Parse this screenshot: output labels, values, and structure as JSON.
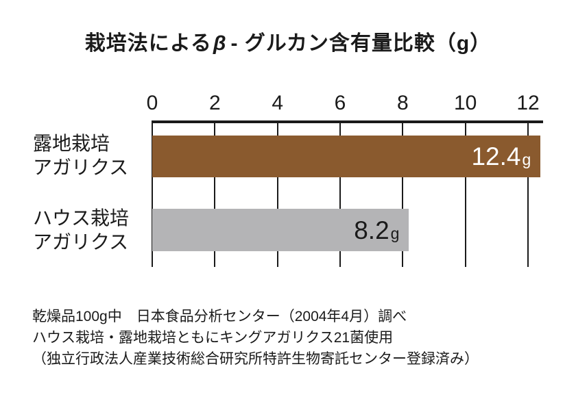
{
  "title": {
    "prefix": "栽培法による",
    "beta": "β",
    "suffix": "- グルカン含有量比較（g）"
  },
  "chart_data": {
    "type": "bar",
    "orientation": "horizontal",
    "title": "栽培法によるβ-グルカン含有量比較（g）",
    "unit": "g",
    "xlim": [
      0,
      12
    ],
    "x_ticks": [
      0,
      2,
      4,
      6,
      8,
      10,
      12
    ],
    "grid": true,
    "categories": [
      "露地栽培アガリクス",
      "ハウス栽培アガリクス"
    ],
    "category_lines": [
      [
        "露地栽培",
        "アガリクス"
      ],
      [
        "ハウス栽培",
        "アガリクス"
      ]
    ],
    "values": [
      12.4,
      8.2
    ],
    "value_labels": [
      "12.4",
      "8.2"
    ],
    "bar_colors": [
      "#8a5a2e",
      "#b4b4b6"
    ],
    "value_label_colors": [
      "#ffffff",
      "#1a1a1a"
    ],
    "axis_color": "#1a1a1a"
  },
  "footer": {
    "lines": [
      "乾燥品100g中　日本食品分析センター（2004年4月）調べ",
      "ハウス栽培・露地栽培ともにキングアガリクス21菌使用",
      "（独立行政法人産業技術総合研究所特許生物寄託センター登録済み）"
    ]
  }
}
